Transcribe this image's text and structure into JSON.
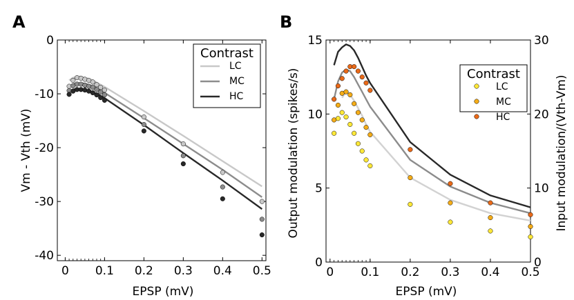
{
  "chart_data": [
    {
      "panel_label": "A",
      "type": "scatter",
      "xlabel": "EPSP (mV)",
      "ylabel": "Vm - Vth (mV)",
      "xlim": [
        -0.02,
        0.51
      ],
      "ylim": [
        -41,
        0
      ],
      "xticks": [
        0,
        0.1,
        0.2,
        0.3,
        0.4,
        0.5
      ],
      "xtick_labels": [
        "0",
        "0.1",
        "0.2",
        "0.3",
        "0.4",
        "0.5"
      ],
      "yticks": [
        0,
        -10,
        -20,
        -30,
        -40
      ],
      "ytick_labels": [
        "0",
        "-10",
        "-20",
        "-30",
        "-40"
      ],
      "legend": {
        "title": "Contrast",
        "position": "top-right"
      },
      "series": [
        {
          "name": "LC",
          "color": "#c8c8c8",
          "line_color": "#c8c8c8",
          "points": {
            "x": [
              0.01,
              0.02,
              0.03,
              0.04,
              0.05,
              0.06,
              0.07,
              0.08,
              0.09,
              0.1,
              0.2,
              0.3,
              0.4,
              0.5
            ],
            "y": [
              -8.6,
              -7.5,
              -7.0,
              -7.1,
              -7.3,
              -7.5,
              -7.8,
              -8.3,
              -8.8,
              -9.3,
              -14.3,
              -19.3,
              -24.6,
              -30.0
            ]
          },
          "curve": {
            "x": [
              0.01,
              0.02,
              0.03,
              0.04,
              0.05,
              0.06,
              0.07,
              0.08,
              0.09,
              0.1,
              0.2,
              0.3,
              0.4,
              0.5
            ],
            "y": [
              -7.5,
              -7.0,
              -6.8,
              -6.8,
              -7.0,
              -7.2,
              -7.5,
              -7.9,
              -8.3,
              -8.7,
              -13.2,
              -17.8,
              -22.5,
              -27.2
            ]
          }
        },
        {
          "name": "MC",
          "color": "#8c8c8c",
          "line_color": "#8c8c8c",
          "points": {
            "x": [
              0.01,
              0.02,
              0.03,
              0.04,
              0.05,
              0.06,
              0.07,
              0.08,
              0.09,
              0.1,
              0.2,
              0.3,
              0.4,
              0.5
            ],
            "y": [
              -9.4,
              -8.5,
              -8.2,
              -8.2,
              -8.4,
              -8.6,
              -8.8,
              -9.2,
              -9.7,
              -10.2,
              -15.7,
              -21.5,
              -27.3,
              -33.3
            ]
          },
          "curve": {
            "x": [
              0.01,
              0.02,
              0.03,
              0.04,
              0.05,
              0.06,
              0.07,
              0.08,
              0.09,
              0.1,
              0.2,
              0.3,
              0.4,
              0.5
            ],
            "y": [
              -8.6,
              -8.2,
              -8.0,
              -8.0,
              -8.1,
              -8.3,
              -8.6,
              -9.0,
              -9.4,
              -9.8,
              -14.5,
              -19.3,
              -24.1,
              -29.2
            ]
          }
        },
        {
          "name": "HC",
          "color": "#282828",
          "line_color": "#282828",
          "points": {
            "x": [
              0.01,
              0.02,
              0.03,
              0.04,
              0.05,
              0.06,
              0.07,
              0.08,
              0.09,
              0.1,
              0.2,
              0.3,
              0.4,
              0.5
            ],
            "y": [
              -10.1,
              -9.5,
              -9.2,
              -9.2,
              -9.3,
              -9.5,
              -9.8,
              -10.2,
              -10.7,
              -11.2,
              -16.9,
              -23.0,
              -29.5,
              -36.2
            ]
          },
          "curve": {
            "x": [
              0.01,
              0.02,
              0.03,
              0.04,
              0.05,
              0.06,
              0.07,
              0.08,
              0.09,
              0.1,
              0.2,
              0.3,
              0.4,
              0.5
            ],
            "y": [
              -9.5,
              -9.2,
              -9.1,
              -9.1,
              -9.2,
              -9.4,
              -9.7,
              -10.0,
              -10.4,
              -10.8,
              -15.8,
              -21.0,
              -26.1,
              -31.4
            ]
          }
        }
      ]
    },
    {
      "panel_label": "B",
      "type": "scatter",
      "xlabel": "EPSP (mV)",
      "ylabel": "Output modulation (spikes/s)",
      "ylabel_right": "Input modulation/(Vth-Vm)",
      "xlim": [
        -0.01,
        0.5
      ],
      "ylim": [
        0,
        15
      ],
      "ylim_right": [
        0,
        30
      ],
      "xticks": [
        0,
        0.1,
        0.2,
        0.3,
        0.4,
        0.5
      ],
      "xtick_labels": [
        "0",
        "0.1",
        "0.2",
        "0.3",
        "0.4",
        "0.5"
      ],
      "yticks": [
        0,
        5,
        10,
        15
      ],
      "ytick_labels": [
        "0",
        "5",
        "10",
        "15"
      ],
      "yticks_right": [
        0,
        10,
        20,
        30
      ],
      "ytick_labels_right": [
        "0",
        "10",
        "20",
        "30"
      ],
      "legend": {
        "title": "Contrast",
        "position": "top-right"
      },
      "series": [
        {
          "name": "LC",
          "color": "#ffe838",
          "line_color": "#d2d2d2",
          "points": {
            "x": [
              0.01,
              0.02,
              0.03,
              0.04,
              0.05,
              0.06,
              0.07,
              0.08,
              0.09,
              0.1,
              0.2,
              0.3,
              0.4,
              0.5
            ],
            "y": [
              8.7,
              9.7,
              10.1,
              9.8,
              9.3,
              8.7,
              8.0,
              7.5,
              6.9,
              6.5,
              3.9,
              2.7,
              2.1,
              1.7
            ]
          },
          "curve": {
            "x": [
              0.03,
              0.04,
              0.05,
              0.06,
              0.07,
              0.08,
              0.09,
              0.1,
              0.2,
              0.3,
              0.4,
              0.5
            ],
            "y": [
              11.1,
              11.5,
              11.3,
              10.9,
              10.4,
              9.9,
              9.3,
              8.8,
              5.7,
              4.2,
              3.3,
              2.8
            ]
          }
        },
        {
          "name": "MC",
          "color": "#f5ad19",
          "line_color": "#8c8c8c",
          "points": {
            "x": [
              0.01,
              0.02,
              0.03,
              0.04,
              0.05,
              0.06,
              0.07,
              0.08,
              0.09,
              0.1,
              0.2,
              0.3,
              0.4,
              0.5
            ],
            "y": [
              9.6,
              10.6,
              11.4,
              11.5,
              11.3,
              10.7,
              10.1,
              9.6,
              9.1,
              8.6,
              5.7,
              4.0,
              3.0,
              2.4
            ]
          },
          "curve": {
            "x": [
              0.01,
              0.02,
              0.03,
              0.04,
              0.05,
              0.06,
              0.07,
              0.08,
              0.09,
              0.1,
              0.2,
              0.3,
              0.4,
              0.5
            ],
            "y": [
              11.0,
              12.2,
              12.8,
              13.0,
              12.9,
              12.5,
              12.0,
              11.5,
              11.0,
              10.5,
              6.9,
              5.1,
              4.0,
              3.3
            ]
          }
        },
        {
          "name": "HC",
          "color": "#ea6a19",
          "line_color": "#282828",
          "points": {
            "x": [
              0.01,
              0.02,
              0.03,
              0.04,
              0.05,
              0.06,
              0.07,
              0.08,
              0.09,
              0.1,
              0.2,
              0.3,
              0.4,
              0.5
            ],
            "y": [
              11.0,
              11.9,
              12.4,
              12.9,
              13.2,
              13.2,
              12.9,
              12.5,
              12.1,
              11.6,
              7.6,
              5.3,
              4.0,
              3.2
            ]
          },
          "curve": {
            "x": [
              0.01,
              0.02,
              0.03,
              0.04,
              0.05,
              0.06,
              0.07,
              0.08,
              0.09,
              0.1,
              0.2,
              0.3,
              0.4,
              0.5
            ],
            "y": [
              13.3,
              14.2,
              14.5,
              14.7,
              14.6,
              14.3,
              13.8,
              13.2,
              12.6,
              12.1,
              8.1,
              5.9,
              4.5,
              3.7
            ]
          }
        }
      ]
    }
  ]
}
